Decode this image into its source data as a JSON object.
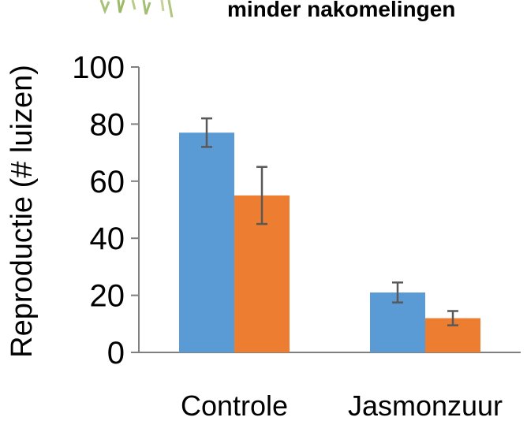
{
  "header": {
    "title_fragment": "minder nakomelingen"
  },
  "chart_data": {
    "type": "bar",
    "categories": [
      "Controle",
      "Jasmonzuur"
    ],
    "series": [
      {
        "color": "#5b9bd5",
        "values": [
          77,
          21
        ],
        "errors": [
          5,
          3.5
        ]
      },
      {
        "color": "#ed7d31",
        "values": [
          55,
          12
        ],
        "errors": [
          10,
          2.5
        ]
      }
    ],
    "ylabel": "Reproductie  (# luizen)",
    "ylim": [
      0,
      100
    ],
    "yticks": [
      0,
      20,
      40,
      60,
      80,
      100
    ],
    "legend": "none",
    "grid": false
  }
}
